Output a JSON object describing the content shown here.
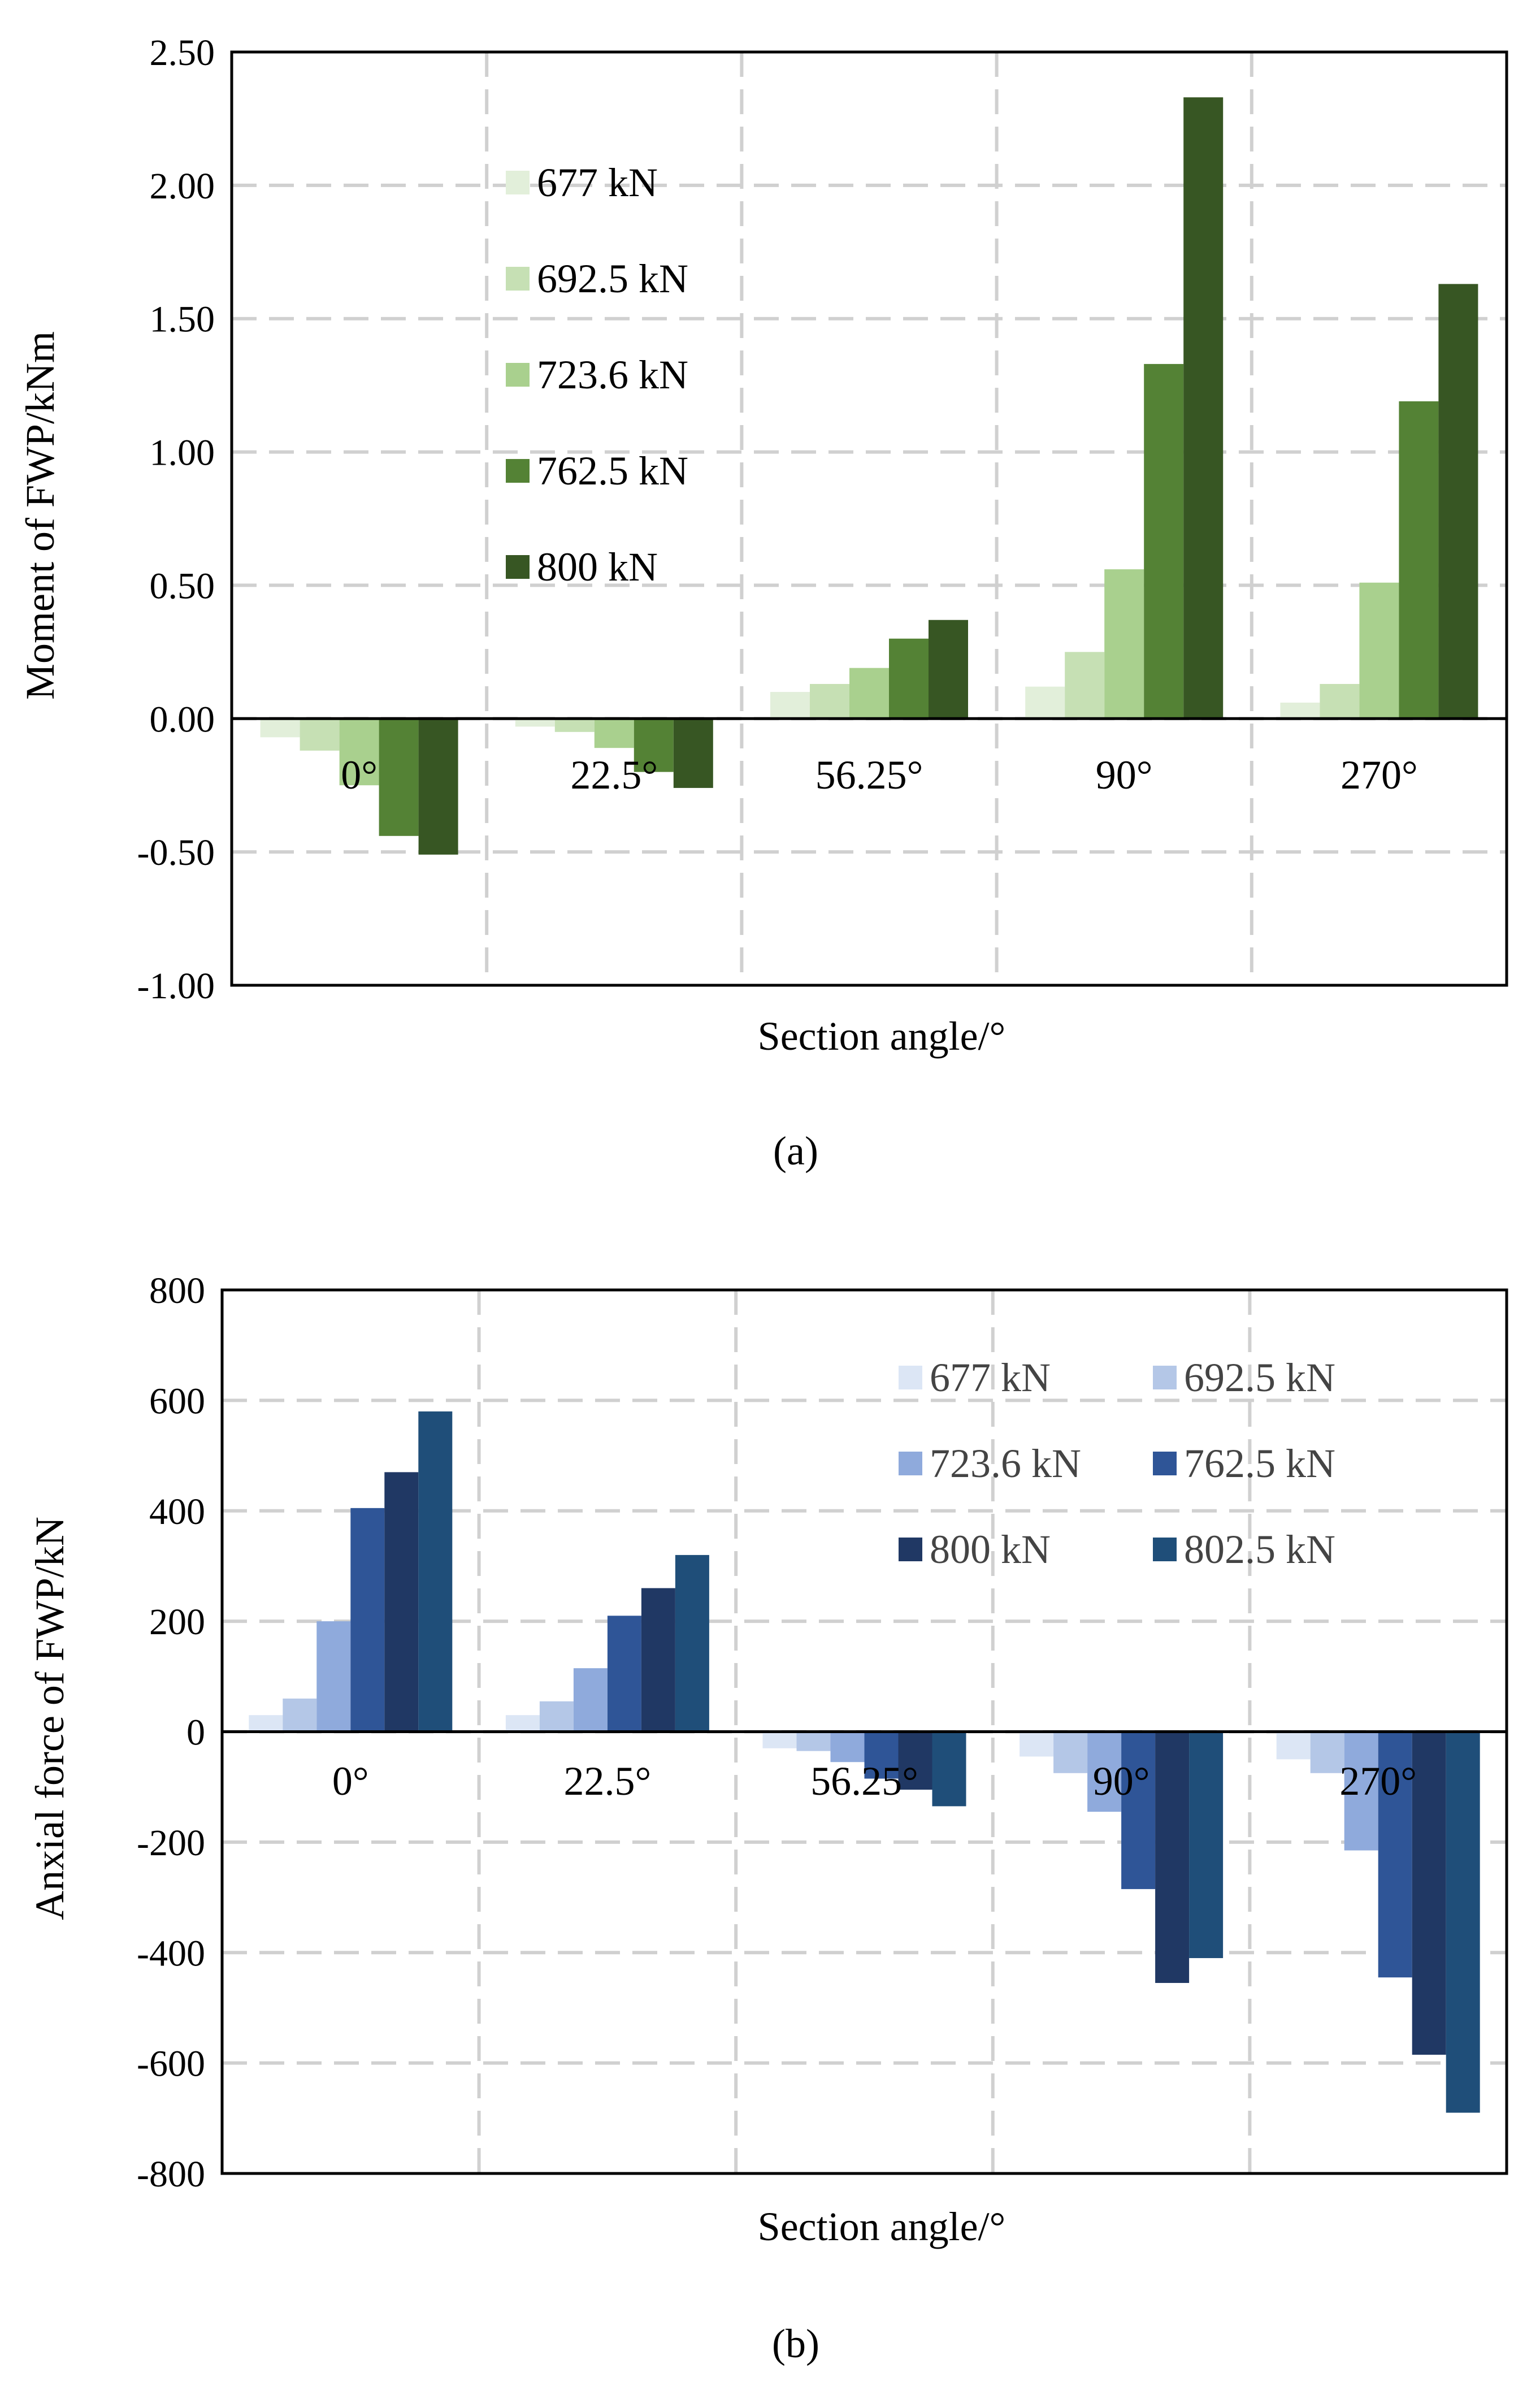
{
  "chart_data": [
    {
      "id": "a",
      "type": "bar",
      "panel_label": "(a)",
      "xlabel": "Section angle/°",
      "ylabel": "Moment of  FWP/kNm",
      "ylim": [
        -1.0,
        2.5
      ],
      "yticks": [
        "2.50",
        "2.00",
        "1.50",
        "1.00",
        "0.50",
        "0.00",
        "-0.50",
        "-1.00"
      ],
      "ytick_values": [
        2.5,
        2.0,
        1.5,
        1.0,
        0.5,
        0.0,
        -0.5,
        -1.0
      ],
      "grid": true,
      "legend_position": "left-upper",
      "categories": [
        "0°",
        "22.5°",
        "56.25°",
        "90°",
        "270°"
      ],
      "series": [
        {
          "name": "677 kN",
          "color": "#e2efda",
          "values": [
            -0.07,
            -0.03,
            0.1,
            0.12,
            0.06
          ]
        },
        {
          "name": "692.5 kN",
          "color": "#c6e0b4",
          "values": [
            -0.12,
            -0.05,
            0.13,
            0.25,
            0.13
          ]
        },
        {
          "name": "723.6 kN",
          "color": "#a9d08e",
          "values": [
            -0.25,
            -0.11,
            0.19,
            0.56,
            0.51
          ]
        },
        {
          "name": "762.5 kN",
          "color": "#548235",
          "values": [
            -0.44,
            -0.2,
            0.3,
            1.33,
            1.19
          ]
        },
        {
          "name": "800 kN",
          "color": "#375623",
          "values": [
            -0.51,
            -0.26,
            0.37,
            2.33,
            1.63
          ]
        }
      ]
    },
    {
      "id": "b",
      "type": "bar",
      "panel_label": "(b)",
      "xlabel": "Section angle/°",
      "ylabel": "Anxial force of FWP/kN",
      "ylim": [
        -800,
        800
      ],
      "yticks": [
        "800",
        "600",
        "400",
        "200",
        "0",
        "-200",
        "-400",
        "-600",
        "-800"
      ],
      "ytick_values": [
        800,
        600,
        400,
        200,
        0,
        -200,
        -400,
        -600,
        -800
      ],
      "grid": true,
      "legend_position": "top-right",
      "categories": [
        "0°",
        "22.5°",
        "56.25°",
        "90°",
        "270°"
      ],
      "series": [
        {
          "name": "677 kN",
          "color": "#dce6f5",
          "values": [
            30,
            30,
            -30,
            -45,
            -50
          ]
        },
        {
          "name": "692.5 kN",
          "color": "#b4c7e7",
          "values": [
            60,
            55,
            -35,
            -75,
            -75
          ]
        },
        {
          "name": "723.6 kN",
          "color": "#8faadc",
          "values": [
            200,
            115,
            -55,
            -145,
            -215
          ]
        },
        {
          "name": "762.5 kN",
          "color": "#2f5597",
          "values": [
            405,
            210,
            -85,
            -285,
            -445
          ]
        },
        {
          "name": "800 kN",
          "color": "#203864",
          "values": [
            470,
            260,
            -105,
            -455,
            -585
          ]
        },
        {
          "name": "802.5 kN",
          "color": "#1f4e79",
          "values": [
            580,
            320,
            -135,
            -410,
            -690
          ]
        }
      ]
    }
  ]
}
